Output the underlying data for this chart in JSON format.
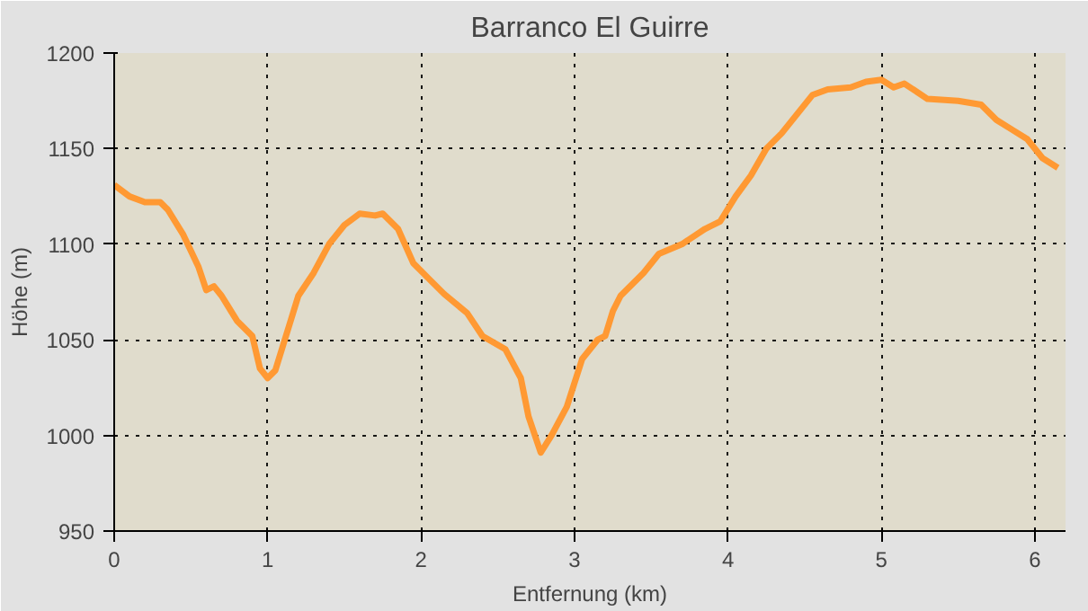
{
  "chart_data": {
    "type": "line",
    "title": "Barranco El Guirre",
    "xlabel": "Entfernung (km)",
    "ylabel": "Höhe (m)",
    "x": [
      0,
      0.1,
      0.2,
      0.3,
      0.35,
      0.45,
      0.55,
      0.6,
      0.65,
      0.7,
      0.8,
      0.9,
      0.95,
      1.0,
      1.05,
      1.15,
      1.2,
      1.3,
      1.4,
      1.5,
      1.6,
      1.7,
      1.75,
      1.85,
      1.95,
      2.05,
      2.15,
      2.3,
      2.4,
      2.55,
      2.65,
      2.7,
      2.78,
      2.85,
      2.95,
      3.05,
      3.15,
      3.2,
      3.25,
      3.3,
      3.45,
      3.55,
      3.7,
      3.85,
      3.95,
      4.05,
      4.15,
      4.25,
      4.35,
      4.45,
      4.55,
      4.65,
      4.8,
      4.9,
      5.0,
      5.08,
      5.15,
      5.3,
      5.5,
      5.65,
      5.75,
      5.85,
      5.95,
      6.05,
      6.15
    ],
    "series": [
      {
        "color": "#ff9933",
        "values": [
          1131,
          1125,
          1122,
          1122,
          1118,
          1105,
          1088,
          1076,
          1078,
          1073,
          1060,
          1052,
          1035,
          1030,
          1034,
          1060,
          1073,
          1085,
          1100,
          1110,
          1116,
          1115,
          1116,
          1108,
          1090,
          1082,
          1074,
          1064,
          1052,
          1045,
          1030,
          1010,
          991,
          1000,
          1015,
          1040,
          1050,
          1052,
          1065,
          1073,
          1085,
          1095,
          1100,
          1108,
          1112,
          1125,
          1136,
          1150,
          1158,
          1168,
          1178,
          1181,
          1182,
          1185,
          1186,
          1182,
          1184,
          1176,
          1175,
          1173,
          1165,
          1160,
          1155,
          1145,
          1140
        ]
      }
    ],
    "xlim": [
      0,
      6.2
    ],
    "xticks": [
      0,
      1,
      2,
      3,
      4,
      5,
      6
    ],
    "ylim": [
      950,
      1200
    ],
    "yticks": [
      950,
      1000,
      1050,
      1100,
      1150,
      1200
    ],
    "grid": true,
    "line_style": "solid",
    "marker": "none"
  }
}
